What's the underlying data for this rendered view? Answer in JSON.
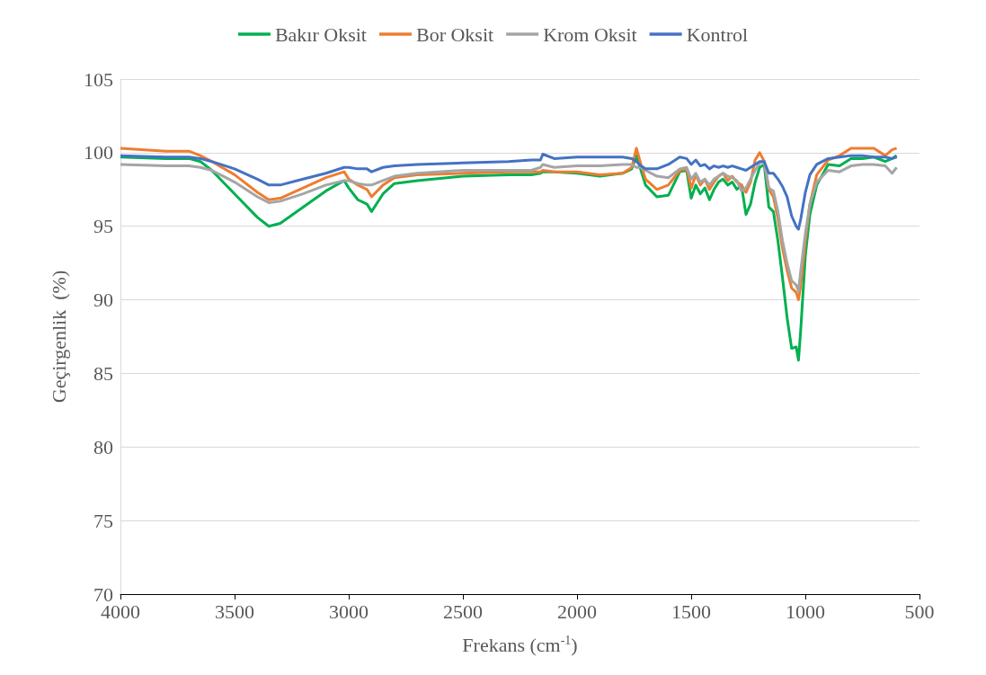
{
  "chart_data": {
    "type": "line",
    "xlabel": "Frekans (cm$^{-1}$)",
    "ylabel": "Geçirgenlik  (%)",
    "x": [
      4000,
      3800,
      3700,
      3650,
      3600,
      3500,
      3400,
      3350,
      3300,
      3200,
      3100,
      3020,
      3000,
      2960,
      2920,
      2900,
      2850,
      2800,
      2700,
      2500,
      2300,
      2200,
      2160,
      2150,
      2100,
      2000,
      1900,
      1800,
      1760,
      1740,
      1720,
      1700,
      1650,
      1600,
      1550,
      1520,
      1500,
      1480,
      1460,
      1440,
      1420,
      1400,
      1380,
      1360,
      1340,
      1320,
      1300,
      1280,
      1260,
      1240,
      1220,
      1200,
      1180,
      1160,
      1140,
      1120,
      1100,
      1080,
      1060,
      1040,
      1030,
      1020,
      1000,
      980,
      950,
      900,
      850,
      800,
      750,
      700,
      650,
      620,
      600
    ],
    "series": [
      {
        "name": "Bakır Oksit",
        "color": "#00b050",
        "values": [
          99.7,
          99.6,
          99.6,
          99.4,
          98.8,
          97.2,
          95.6,
          95.0,
          95.2,
          96.3,
          97.4,
          98.1,
          97.6,
          96.8,
          96.5,
          96.0,
          97.2,
          97.9,
          98.1,
          98.4,
          98.5,
          98.5,
          98.6,
          98.7,
          98.7,
          98.6,
          98.4,
          98.6,
          98.9,
          99.8,
          98.8,
          97.8,
          97.0,
          97.1,
          98.7,
          98.8,
          96.9,
          97.8,
          97.2,
          97.6,
          96.8,
          97.5,
          98.0,
          98.2,
          97.8,
          98.0,
          97.5,
          97.8,
          95.8,
          96.5,
          98.0,
          99.0,
          99.2,
          96.3,
          96.0,
          94.0,
          91.5,
          88.8,
          86.7,
          86.8,
          85.9,
          88.0,
          93.0,
          95.8,
          97.8,
          99.2,
          99.1,
          99.6,
          99.6,
          99.7,
          99.4,
          99.6,
          99.8
        ]
      },
      {
        "name": "Bor Oksit",
        "color": "#ed7d31",
        "values": [
          100.3,
          100.1,
          100.1,
          99.8,
          99.4,
          98.5,
          97.3,
          96.8,
          96.9,
          97.6,
          98.3,
          98.7,
          98.2,
          97.8,
          97.5,
          97.0,
          97.8,
          98.3,
          98.5,
          98.6,
          98.7,
          98.7,
          98.7,
          98.8,
          98.7,
          98.7,
          98.5,
          98.6,
          99.0,
          100.3,
          99.2,
          98.2,
          97.5,
          97.8,
          98.8,
          98.9,
          97.6,
          98.5,
          97.8,
          98.2,
          97.5,
          98.0,
          98.4,
          98.6,
          98.1,
          98.4,
          98.0,
          97.8,
          97.3,
          98.0,
          99.5,
          100.0,
          99.4,
          97.5,
          97.0,
          95.5,
          93.5,
          92.0,
          90.8,
          90.5,
          90.0,
          91.0,
          94.0,
          96.5,
          98.5,
          99.5,
          99.8,
          100.3,
          100.3,
          100.3,
          99.8,
          100.2,
          100.3
        ]
      },
      {
        "name": "Krom Oksit",
        "color": "#a5a5a5",
        "values": [
          99.2,
          99.1,
          99.1,
          99.0,
          98.8,
          98.0,
          97.0,
          96.6,
          96.7,
          97.2,
          97.8,
          98.1,
          98.1,
          97.9,
          97.8,
          97.8,
          98.1,
          98.4,
          98.6,
          98.8,
          98.8,
          98.8,
          99.0,
          99.2,
          99.0,
          99.1,
          99.1,
          99.2,
          99.2,
          99.0,
          99.0,
          98.8,
          98.4,
          98.3,
          98.9,
          99.0,
          98.2,
          98.6,
          98.0,
          98.2,
          97.8,
          98.2,
          98.4,
          98.6,
          98.4,
          98.3,
          98.1,
          97.4,
          97.6,
          98.2,
          98.8,
          99.3,
          99.4,
          97.6,
          97.4,
          96.0,
          94.0,
          92.5,
          91.3,
          91.0,
          90.6,
          92.0,
          94.5,
          96.5,
          98.0,
          98.8,
          98.7,
          99.1,
          99.2,
          99.2,
          99.1,
          98.6,
          99.0
        ]
      },
      {
        "name": "Kontrol",
        "color": "#4472c4",
        "values": [
          99.8,
          99.7,
          99.7,
          99.6,
          99.4,
          98.9,
          98.2,
          97.8,
          97.8,
          98.2,
          98.6,
          99.0,
          99.0,
          98.9,
          98.9,
          98.7,
          99.0,
          99.1,
          99.2,
          99.3,
          99.4,
          99.5,
          99.5,
          99.9,
          99.6,
          99.7,
          99.7,
          99.7,
          99.6,
          99.4,
          99.1,
          98.9,
          98.9,
          99.2,
          99.7,
          99.6,
          99.2,
          99.5,
          99.1,
          99.2,
          98.9,
          99.1,
          99.0,
          99.1,
          99.0,
          99.1,
          99.0,
          98.9,
          98.8,
          99.0,
          99.2,
          99.4,
          99.4,
          98.6,
          98.6,
          98.2,
          97.7,
          97.0,
          95.7,
          95.0,
          94.8,
          95.5,
          97.3,
          98.5,
          99.2,
          99.6,
          99.7,
          99.8,
          99.8,
          99.7,
          99.7,
          99.6,
          99.7
        ]
      }
    ],
    "xlim": [
      4000,
      500
    ],
    "xticks": [
      4000,
      3500,
      3000,
      2500,
      2000,
      1500,
      1000,
      500
    ],
    "ylim": [
      70,
      105
    ],
    "yticks": [
      70,
      75,
      80,
      85,
      90,
      95,
      100,
      105
    ],
    "grid": "y",
    "legend": "top",
    "marker": "none",
    "line_style": "solid"
  }
}
